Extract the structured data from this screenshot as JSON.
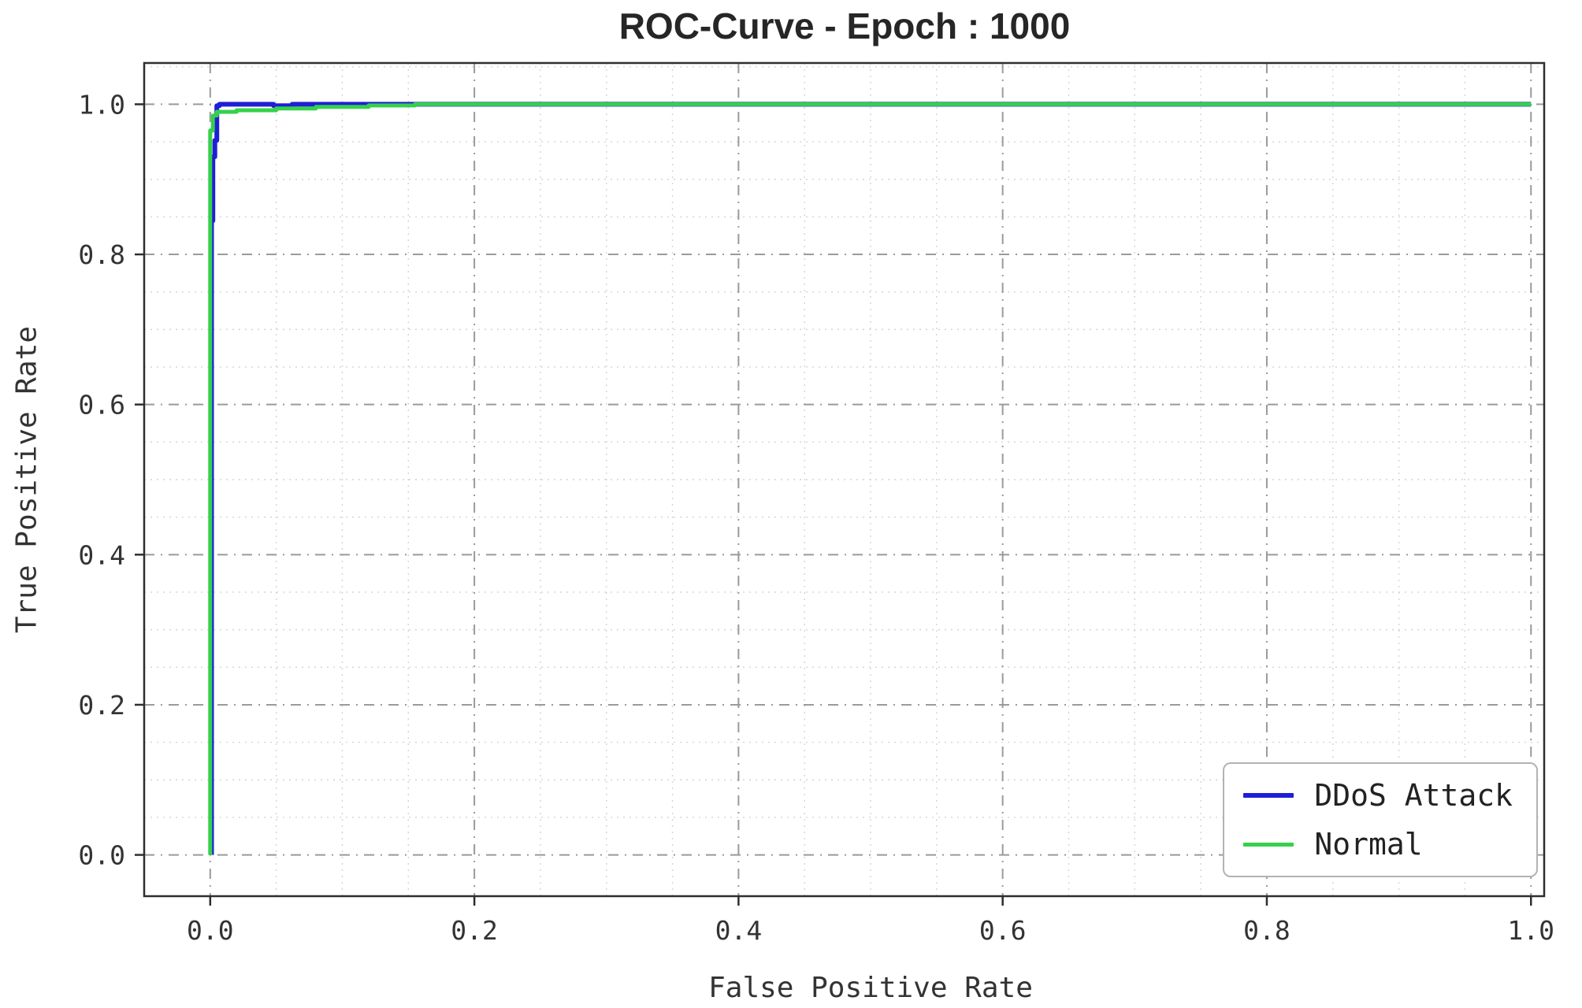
{
  "chart_data": {
    "type": "line",
    "title": "ROC-Curve - Epoch : 1000",
    "xlabel": "False Positive Rate",
    "ylabel": "True Positive Rate",
    "xlim": [
      -0.05,
      1.01
    ],
    "ylim": [
      -0.055,
      1.055
    ],
    "xticks": {
      "values": [
        0,
        0.2,
        0.4,
        0.6,
        0.8,
        1.0
      ],
      "labels": [
        "0.0",
        "0.2",
        "0.4",
        "0.6",
        "0.8",
        "1.0"
      ]
    },
    "yticks": {
      "values": [
        0,
        0.2,
        0.4,
        0.6,
        0.8,
        1.0
      ],
      "labels": [
        "0.0",
        "0.2",
        "0.4",
        "0.6",
        "0.8",
        "1.0"
      ]
    },
    "minor_tick_step": 0.05,
    "grid": {
      "major": "dash-dot",
      "minor": "dotted",
      "major_color": "#9a9a9a",
      "minor_color": "#d4d4d4"
    },
    "axis_color": "#2e2e2e",
    "text_color": "#333333",
    "legend": {
      "position": "bottom-right"
    },
    "series": [
      {
        "name": "DDoS Attack",
        "color": "#1f1fd6",
        "width": 6,
        "points": [
          [
            0.001,
            0.0
          ],
          [
            0.001,
            0.845
          ],
          [
            0.002,
            0.845
          ],
          [
            0.002,
            0.93
          ],
          [
            0.0035,
            0.93
          ],
          [
            0.0035,
            0.952
          ],
          [
            0.005,
            0.952
          ],
          [
            0.005,
            0.998
          ],
          [
            0.007,
            0.998
          ],
          [
            0.007,
            1.0
          ],
          [
            0.048,
            1.0
          ],
          [
            0.048,
            0.998
          ],
          [
            0.062,
            0.998
          ],
          [
            0.062,
            1.0
          ],
          [
            1.0,
            1.0
          ]
        ]
      },
      {
        "name": "Normal",
        "color": "#35d14c",
        "width": 5,
        "points": [
          [
            0.0,
            0.0
          ],
          [
            0.0,
            0.965
          ],
          [
            0.002,
            0.965
          ],
          [
            0.002,
            0.985
          ],
          [
            0.005,
            0.985
          ],
          [
            0.005,
            0.99
          ],
          [
            0.02,
            0.99
          ],
          [
            0.02,
            0.992
          ],
          [
            0.05,
            0.992
          ],
          [
            0.05,
            0.9945
          ],
          [
            0.08,
            0.9945
          ],
          [
            0.08,
            0.9965
          ],
          [
            0.12,
            0.9965
          ],
          [
            0.12,
            0.9985
          ],
          [
            0.155,
            0.9985
          ],
          [
            0.155,
            1.0
          ],
          [
            1.0,
            1.0
          ]
        ]
      }
    ]
  }
}
